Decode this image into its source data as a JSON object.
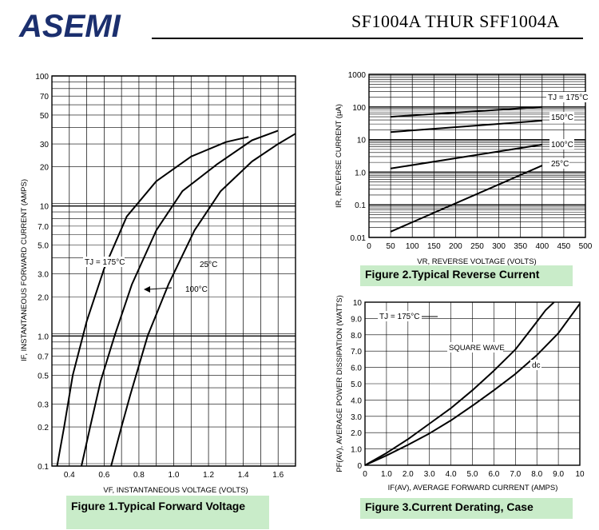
{
  "header": {
    "brand": "ASEMI",
    "part_title": "SF1004A THUR SFF1004A"
  },
  "captions": {
    "fig1": "Figure 1.Typical  Forward  Voltage",
    "fig2": "Figure 2.Typical  Reverse  Current",
    "fig3": "Figure 3.Current  Derating,  Case"
  },
  "colors": {
    "brand": "#1b2f6e",
    "caption_bg": "#c9ecc9",
    "line": "#000000",
    "grid": "#000000"
  },
  "chart_data": [
    {
      "type": "line",
      "ylabel": "IF, INSTANTANEOUS FORWARD CURRENT (AMPS)",
      "xlabel": "VF, INSTANTANEOUS VOLTAGE (VOLTS)",
      "yscale": "log",
      "xlim": [
        0.3,
        1.7
      ],
      "ylim": [
        0.1,
        100
      ],
      "x_ticks": [
        "0.4",
        "0.6",
        "0.8",
        "1.0",
        "1.2",
        "1.4",
        "1.6"
      ],
      "y_ticks": [
        "0.1",
        "0.2",
        "0.3",
        "0.5",
        "0.7",
        "1.0",
        "2.0",
        "3.0",
        "5.0",
        "7.0",
        "10",
        "20",
        "30",
        "50",
        "70",
        "100"
      ],
      "grid": true,
      "series": [
        {
          "name": "TJ = 175°C",
          "points": [
            [
              0.33,
              0.1
            ],
            [
              0.37,
              0.2
            ],
            [
              0.42,
              0.5
            ],
            [
              0.5,
              1.3
            ],
            [
              0.6,
              3.3
            ],
            [
              0.73,
              8.3
            ],
            [
              0.9,
              15.5
            ],
            [
              1.1,
              24
            ],
            [
              1.3,
              31
            ],
            [
              1.43,
              34
            ]
          ]
        },
        {
          "name": "100°C",
          "points": [
            [
              0.47,
              0.1
            ],
            [
              0.52,
              0.2
            ],
            [
              0.58,
              0.45
            ],
            [
              0.66,
              1.0
            ],
            [
              0.76,
              2.5
            ],
            [
              0.9,
              6.5
            ],
            [
              1.05,
              13
            ],
            [
              1.25,
              21
            ],
            [
              1.45,
              32
            ],
            [
              1.6,
              38
            ]
          ]
        },
        {
          "name": "25°C",
          "points": [
            [
              0.64,
              0.1
            ],
            [
              0.7,
              0.2
            ],
            [
              0.75,
              0.35
            ],
            [
              0.85,
              1.0
            ],
            [
              0.97,
              2.5
            ],
            [
              1.12,
              6.5
            ],
            [
              1.27,
              13
            ],
            [
              1.45,
              22
            ],
            [
              1.6,
              30
            ],
            [
              1.7,
              36
            ]
          ]
        }
      ],
      "annotations": [
        "TJ = 175°C",
        "25°C",
        "100°C"
      ]
    },
    {
      "type": "line",
      "ylabel": "IR, REVERSE CURRENT (µA)",
      "xlabel": "VR, REVERSE VOLTAGE (VOLTS)",
      "yscale": "log",
      "xlim": [
        0,
        500
      ],
      "ylim": [
        0.01,
        1000
      ],
      "x_ticks": [
        "0",
        "50",
        "100",
        "150",
        "200",
        "250",
        "300",
        "350",
        "400",
        "450",
        "500"
      ],
      "y_ticks": [
        "0.01",
        "0.1",
        "1.0",
        "10",
        "100",
        "1000"
      ],
      "grid": true,
      "series": [
        {
          "name": "TJ = 175°C",
          "points": [
            [
              50,
              50
            ],
            [
              400,
              100
            ]
          ]
        },
        {
          "name": "150°C",
          "points": [
            [
              50,
              17
            ],
            [
              400,
              38
            ]
          ]
        },
        {
          "name": "100°C",
          "points": [
            [
              50,
              1.3
            ],
            [
              400,
              7
            ]
          ]
        },
        {
          "name": "25°C",
          "points": [
            [
              50,
              0.015
            ],
            [
              400,
              1.6
            ]
          ]
        }
      ],
      "annotations": [
        "TJ = 175°C",
        "150°C",
        "100°C",
        "25°C"
      ]
    },
    {
      "type": "line",
      "ylabel": "PF(AV), AVERAGE POWER DISSIPATION (WATTS)",
      "xlabel": "IF(AV), AVERAGE FORWARD CURRENT (AMPS)",
      "xlim": [
        0,
        10
      ],
      "ylim": [
        0,
        10
      ],
      "x_ticks": [
        "0",
        "1.0",
        "2.0",
        "3.0",
        "4.0",
        "5.0",
        "6.0",
        "7.0",
        "8.0",
        "9.0",
        "10"
      ],
      "y_ticks": [
        "0",
        "1.0",
        "2.0",
        "3.0",
        "4.0",
        "5.0",
        "6.0",
        "7.0",
        "8.0",
        "9.0",
        "10"
      ],
      "grid": true,
      "series": [
        {
          "name": "SQUARE WAVE",
          "points": [
            [
              0,
              0
            ],
            [
              1,
              0.75
            ],
            [
              2,
              1.6
            ],
            [
              3,
              2.55
            ],
            [
              4,
              3.5
            ],
            [
              5,
              4.6
            ],
            [
              6,
              5.8
            ],
            [
              7,
              7.1
            ],
            [
              8,
              8.8
            ],
            [
              8.4,
              9.5
            ],
            [
              8.8,
              10
            ]
          ]
        },
        {
          "name": "dc",
          "points": [
            [
              0,
              0
            ],
            [
              1,
              0.6
            ],
            [
              2,
              1.25
            ],
            [
              3,
              1.95
            ],
            [
              4,
              2.75
            ],
            [
              5,
              3.65
            ],
            [
              6,
              4.6
            ],
            [
              7,
              5.6
            ],
            [
              8,
              6.75
            ],
            [
              9,
              8.1
            ],
            [
              10,
              9.9
            ]
          ]
        }
      ],
      "annotations": [
        "TJ = 175°C",
        "SQUARE WAVE",
        "dc"
      ]
    }
  ]
}
